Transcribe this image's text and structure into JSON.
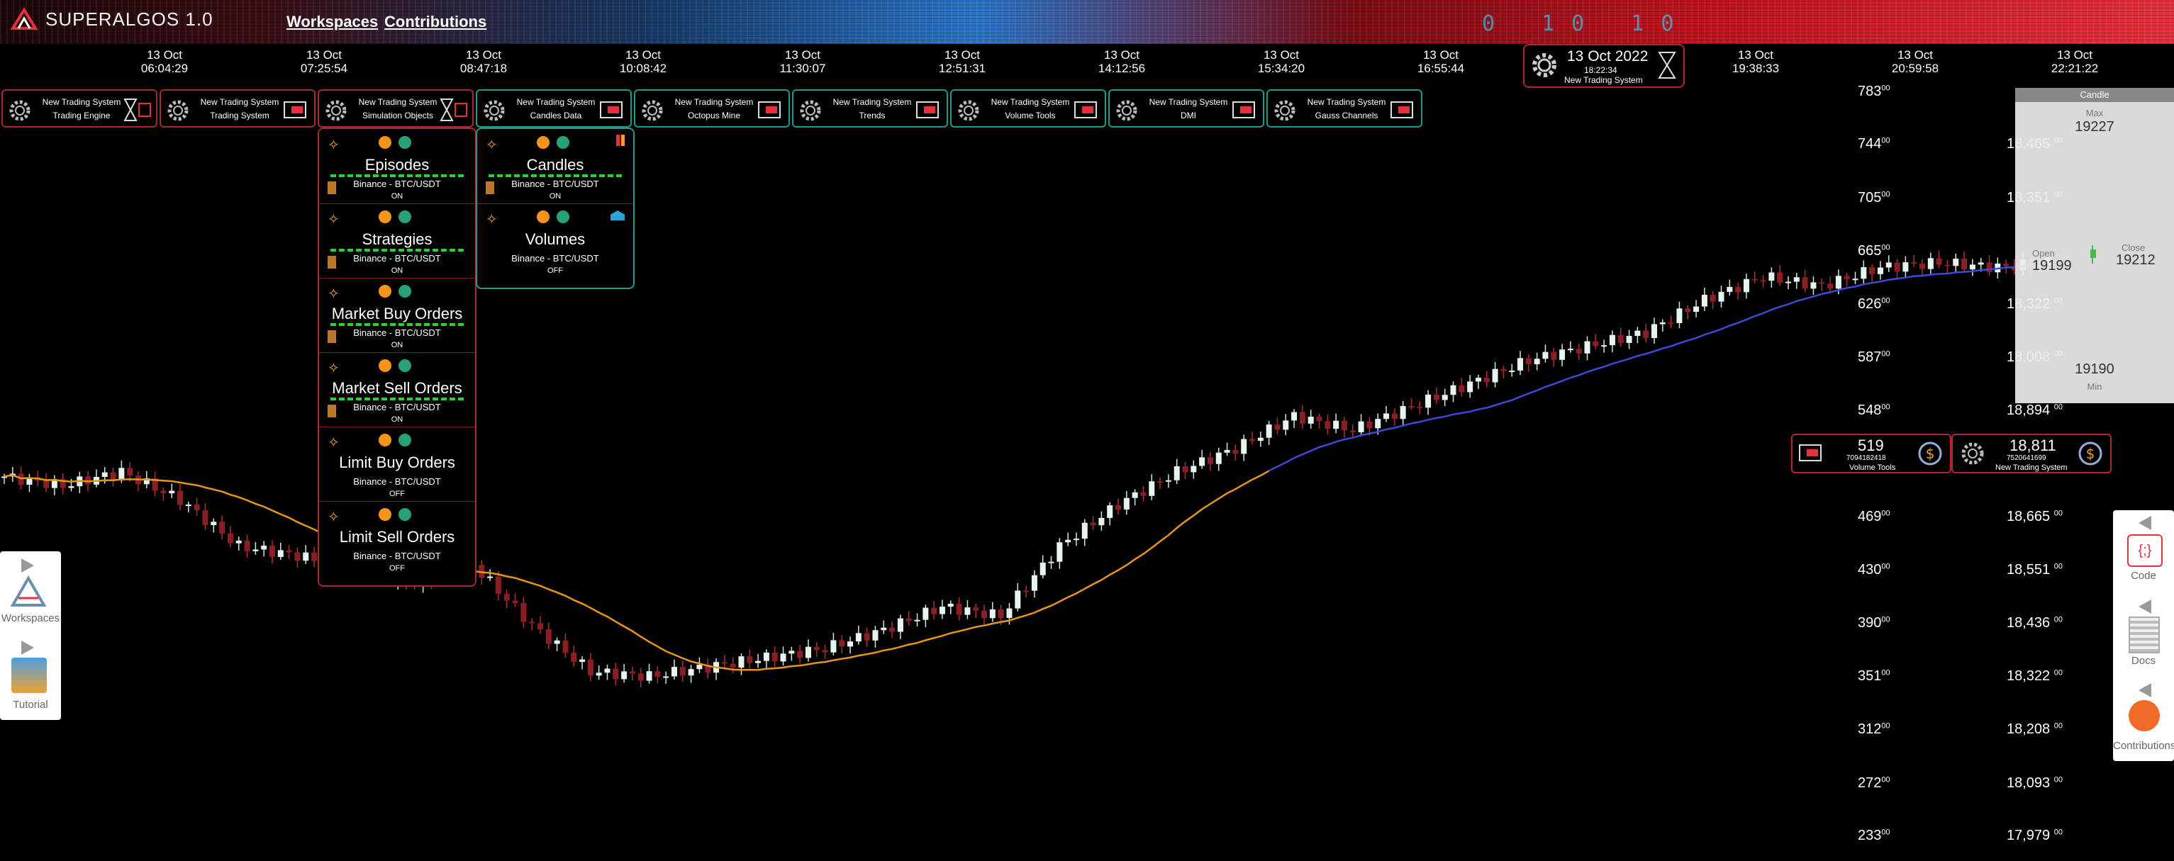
{
  "app": {
    "logo_text": "SUPERALGOS 1.0",
    "nav": [
      "Workspaces",
      "Contributions"
    ],
    "binary_decoration": "0 10 10"
  },
  "time_axis": [
    {
      "date": "13 Oct",
      "time": "06:04:29"
    },
    {
      "date": "13 Oct",
      "time": "07:25:54"
    },
    {
      "date": "13 Oct",
      "time": "08:47:18"
    },
    {
      "date": "13 Oct",
      "time": "10:08:42"
    },
    {
      "date": "13 Oct",
      "time": "11:30:07"
    },
    {
      "date": "13 Oct",
      "time": "12:51:31"
    },
    {
      "date": "13 Oct",
      "time": "14:12:56"
    },
    {
      "date": "13 Oct",
      "time": "15:34:20"
    },
    {
      "date": "13 Oct",
      "time": "16:55:44"
    },
    {
      "date": "13 Oct",
      "time": "19:38:33"
    },
    {
      "date": "13 Oct",
      "time": "20:59:58"
    },
    {
      "date": "13 Oct",
      "time": "22:21:22"
    }
  ],
  "current_time": {
    "date": "13 Oct 2022",
    "time": "18:22:34",
    "system": "New Trading System"
  },
  "tabs": [
    {
      "line1": "New Trading System",
      "line2": "Trading Engine"
    },
    {
      "line1": "New Trading System",
      "line2": "Trading System"
    },
    {
      "line1": "New Trading System",
      "line2": "Simulation Objects"
    },
    {
      "line1": "New Trading System",
      "line2": "Candles Data"
    },
    {
      "line1": "New Trading System",
      "line2": "Octopus Mine"
    },
    {
      "line1": "New Trading System",
      "line2": "Trends"
    },
    {
      "line1": "New Trading System",
      "line2": "Volume Tools"
    },
    {
      "line1": "New Trading System",
      "line2": "DMI"
    },
    {
      "line1": "New Trading System",
      "line2": "Gauss Channels"
    }
  ],
  "simulation_layers": [
    {
      "title": "Episodes",
      "market": "Binance - BTC/USDT",
      "status": "ON"
    },
    {
      "title": "Strategies",
      "market": "Binance - BTC/USDT",
      "status": "ON"
    },
    {
      "title": "Market Buy Orders",
      "market": "Binance - BTC/USDT",
      "status": "ON"
    },
    {
      "title": "Market Sell Orders",
      "market": "Binance - BTC/USDT",
      "status": "ON"
    },
    {
      "title": "Limit Buy Orders",
      "market": "Binance - BTC/USDT",
      "status": "OFF"
    },
    {
      "title": "Limit Sell Orders",
      "market": "Binance - BTC/USDT",
      "status": "OFF"
    }
  ],
  "candles_layers": [
    {
      "title": "Candles",
      "market": "Binance - BTC/USDT",
      "status": "ON"
    },
    {
      "title": "Volumes",
      "market": "Binance - BTC/USDT",
      "status": "OFF"
    }
  ],
  "price_axis_left": [
    {
      "main": "783",
      "sup": "00"
    },
    {
      "main": "744",
      "sup": "00"
    },
    {
      "main": "705",
      "sup": "00"
    },
    {
      "main": "665",
      "sup": "00"
    },
    {
      "main": "626",
      "sup": "00"
    },
    {
      "main": "587",
      "sup": "00"
    },
    {
      "main": "548",
      "sup": "00"
    },
    {
      "main": "469",
      "sup": "00"
    },
    {
      "main": "430",
      "sup": "00"
    },
    {
      "main": "390",
      "sup": "00"
    },
    {
      "main": "351",
      "sup": "00"
    },
    {
      "main": "312",
      "sup": "00"
    },
    {
      "main": "272",
      "sup": "00"
    },
    {
      "main": "233",
      "sup": "00"
    }
  ],
  "price_axis_right": [
    {
      "main": "18,465",
      "sup": "00"
    },
    {
      "main": "18,351",
      "sup": "00"
    },
    {
      "main": "18,322",
      "sup": "00"
    },
    {
      "main": "18,008",
      "sup": "00"
    },
    {
      "main": "18,894",
      "sup": "00"
    },
    {
      "main": "18,665",
      "sup": "00"
    },
    {
      "main": "18,551",
      "sup": "00"
    },
    {
      "main": "18,436",
      "sup": "00"
    },
    {
      "main": "18,322",
      "sup": "00"
    },
    {
      "main": "18,208",
      "sup": "00"
    },
    {
      "main": "18,093",
      "sup": "00"
    },
    {
      "main": "17,979",
      "sup": "00"
    }
  ],
  "candle_panel": {
    "title": "Candle",
    "max_label": "Max",
    "max": "19227",
    "open_label": "Open",
    "open": "19199",
    "close_label": "Close",
    "close": "19212",
    "min_label": "Min",
    "min": "19190"
  },
  "volume_boxes": [
    {
      "value": "519",
      "sub": "7094182418",
      "name": "Volume Tools"
    },
    {
      "value": "18,811",
      "sub": "7520641699",
      "name": "New Trading System"
    }
  ],
  "side_left": [
    {
      "label": "Workspaces"
    },
    {
      "label": "Tutorial"
    }
  ],
  "side_right": [
    {
      "label": "Code"
    },
    {
      "label": "Docs"
    },
    {
      "label": "Contributions"
    }
  ],
  "colors": {
    "accent_red": "#a52a32",
    "accent_teal": "#1f9a8a",
    "candle_up": "#e8f4ee",
    "candle_down": "#8b1d24",
    "ma_orange": "#e8951c",
    "ma_blue": "#3a4bd8",
    "dash_green": "#25d42c"
  },
  "chart_data": {
    "type": "line",
    "series": [
      {
        "name": "BTC/USDT",
        "values": [
          18750,
          18730,
          18760,
          18700,
          18600,
          18580,
          18550,
          18520,
          18560,
          18430,
          18330,
          18320,
          18340,
          18360,
          18380,
          18420,
          18470,
          18450,
          18600,
          18690,
          18760,
          18810,
          18880,
          18850,
          18900,
          18950,
          19000,
          19030,
          19060,
          19130,
          19180,
          19160,
          19200,
          19210,
          19200,
          19212
        ]
      }
    ]
  }
}
